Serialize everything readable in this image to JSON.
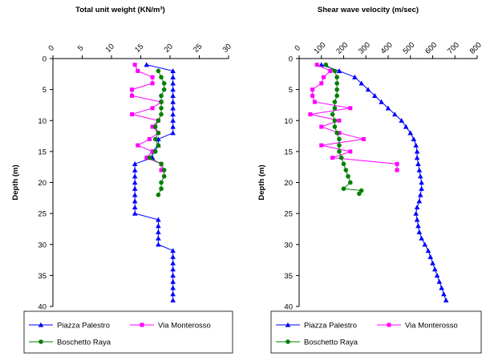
{
  "chart_data": [
    {
      "type": "scatter",
      "title": "Total unit weight (KN/m³)",
      "xlabel": "",
      "ylabel": "Depth (m)",
      "xlim": [
        0,
        30
      ],
      "ylim": [
        0,
        40
      ],
      "x_ticks": [
        "0",
        "5",
        "10",
        "15",
        "20",
        "25",
        "30"
      ],
      "y_ticks": [
        "0",
        "5",
        "10",
        "15",
        "20",
        "25",
        "30",
        "35",
        "40"
      ],
      "y_inverted": true,
      "x_axis_position": "top",
      "legend_position": "bottom",
      "series": [
        {
          "name": "Piazza Palestro",
          "color": "#0000ff",
          "marker": "triangle",
          "points": [
            [
              16,
              1
            ],
            [
              20.5,
              2
            ],
            [
              20.5,
              3
            ],
            [
              20.5,
              4
            ],
            [
              20.5,
              5
            ],
            [
              20.5,
              6
            ],
            [
              20.5,
              7
            ],
            [
              20.5,
              8
            ],
            [
              20.5,
              9
            ],
            [
              20.5,
              10
            ],
            [
              20.5,
              11
            ],
            [
              20.5,
              12
            ],
            [
              18,
              13
            ],
            [
              18,
              14
            ],
            [
              17,
              15
            ],
            [
              17,
              16
            ],
            [
              14,
              17
            ],
            [
              14,
              18
            ],
            [
              14,
              19
            ],
            [
              14,
              20
            ],
            [
              14,
              21
            ],
            [
              14,
              22
            ],
            [
              14,
              23
            ],
            [
              14,
              24
            ],
            [
              14,
              25
            ],
            [
              18,
              26
            ],
            [
              18,
              27
            ],
            [
              18,
              28
            ],
            [
              18,
              29
            ],
            [
              18,
              30
            ],
            [
              20.5,
              31
            ],
            [
              20.5,
              32
            ],
            [
              20.5,
              33
            ],
            [
              20.5,
              34
            ],
            [
              20.5,
              35
            ],
            [
              20.5,
              36
            ],
            [
              20.5,
              37
            ],
            [
              20.5,
              38
            ],
            [
              20.5,
              39
            ]
          ]
        },
        {
          "name": "Via Monterosso",
          "color": "#ff00ff",
          "marker": "square",
          "points": [
            [
              14,
              1
            ],
            [
              14.5,
              2
            ],
            [
              17,
              3
            ],
            [
              17,
              4
            ],
            [
              13.5,
              5
            ],
            [
              13.5,
              6
            ],
            [
              18.5,
              7
            ],
            [
              17,
              8
            ],
            [
              13.5,
              9
            ],
            [
              18,
              10
            ],
            [
              17,
              11
            ],
            [
              18,
              12
            ],
            [
              16.5,
              13
            ],
            [
              14.5,
              14
            ],
            [
              17,
              15
            ],
            [
              16,
              16
            ],
            [
              18.5,
              17
            ],
            [
              18.5,
              18
            ]
          ]
        },
        {
          "name": "Boschetto Raya",
          "color": "#008000",
          "marker": "circle",
          "points": [
            [
              18,
              2
            ],
            [
              18.5,
              3
            ],
            [
              19,
              4
            ],
            [
              19,
              5
            ],
            [
              18.5,
              6
            ],
            [
              18.5,
              7
            ],
            [
              18.5,
              8
            ],
            [
              18.5,
              9
            ],
            [
              18,
              10
            ],
            [
              17.5,
              11
            ],
            [
              18,
              12
            ],
            [
              17.5,
              13
            ],
            [
              18,
              14
            ],
            [
              17.5,
              15
            ],
            [
              16.5,
              16
            ],
            [
              18.5,
              17
            ],
            [
              19,
              18
            ],
            [
              19,
              19
            ],
            [
              18.5,
              20
            ],
            [
              18.5,
              21
            ],
            [
              18,
              22
            ]
          ]
        }
      ]
    },
    {
      "type": "scatter",
      "title": "Shear wave velocity (m/sec)",
      "xlabel": "",
      "ylabel": "Depth (m)",
      "xlim": [
        0,
        800
      ],
      "ylim": [
        0,
        40
      ],
      "x_ticks": [
        "0",
        "100",
        "200",
        "300",
        "400",
        "500",
        "600",
        "700",
        "800"
      ],
      "y_ticks": [
        "0",
        "5",
        "10",
        "15",
        "20",
        "25",
        "30",
        "35",
        "40"
      ],
      "y_inverted": true,
      "x_axis_position": "top",
      "legend_position": "bottom",
      "series": [
        {
          "name": "Piazza Palestro",
          "color": "#0000ff",
          "marker": "triangle",
          "points": [
            [
              100,
              1
            ],
            [
              180,
              2
            ],
            [
              250,
              3
            ],
            [
              280,
              4
            ],
            [
              310,
              5
            ],
            [
              340,
              6
            ],
            [
              370,
              7
            ],
            [
              400,
              8
            ],
            [
              430,
              9
            ],
            [
              460,
              10
            ],
            [
              480,
              11
            ],
            [
              500,
              12
            ],
            [
              515,
              13
            ],
            [
              525,
              14
            ],
            [
              530,
              15
            ],
            [
              530,
              16
            ],
            [
              535,
              17
            ],
            [
              540,
              18
            ],
            [
              545,
              19
            ],
            [
              550,
              20
            ],
            [
              550,
              21
            ],
            [
              545,
              22
            ],
            [
              540,
              23
            ],
            [
              530,
              24
            ],
            [
              525,
              25
            ],
            [
              530,
              26
            ],
            [
              535,
              27
            ],
            [
              540,
              28
            ],
            [
              550,
              29
            ],
            [
              565,
              30
            ],
            [
              580,
              31
            ],
            [
              590,
              32
            ],
            [
              600,
              33
            ],
            [
              610,
              34
            ],
            [
              620,
              35
            ],
            [
              630,
              36
            ],
            [
              640,
              37
            ],
            [
              650,
              38
            ],
            [
              660,
              39
            ]
          ]
        },
        {
          "name": "Via Monterosso",
          "color": "#ff00ff",
          "marker": "square",
          "points": [
            [
              80,
              1
            ],
            [
              140,
              2
            ],
            [
              110,
              3
            ],
            [
              100,
              4
            ],
            [
              60,
              5
            ],
            [
              60,
              6
            ],
            [
              70,
              7
            ],
            [
              230,
              8
            ],
            [
              50,
              9
            ],
            [
              180,
              10
            ],
            [
              100,
              11
            ],
            [
              180,
              12
            ],
            [
              290,
              13
            ],
            [
              100,
              14
            ],
            [
              230,
              15
            ],
            [
              150,
              16
            ],
            [
              440,
              17
            ],
            [
              440,
              18
            ]
          ]
        },
        {
          "name": "Boschetto Raya",
          "color": "#008000",
          "marker": "circle",
          "points": [
            [
              120,
              1
            ],
            [
              160,
              2
            ],
            [
              170,
              3
            ],
            [
              170,
              4
            ],
            [
              170,
              5
            ],
            [
              170,
              6
            ],
            [
              160,
              7
            ],
            [
              160,
              8
            ],
            [
              150,
              9
            ],
            [
              160,
              10
            ],
            [
              160,
              11
            ],
            [
              170,
              12
            ],
            [
              180,
              13
            ],
            [
              180,
              14
            ],
            [
              180,
              15
            ],
            [
              190,
              16
            ],
            [
              200,
              17
            ],
            [
              210,
              18
            ],
            [
              220,
              19
            ],
            [
              230,
              20
            ],
            [
              200,
              21
            ],
            [
              280,
              21.3
            ],
            [
              270,
              21.8
            ]
          ]
        }
      ]
    }
  ]
}
